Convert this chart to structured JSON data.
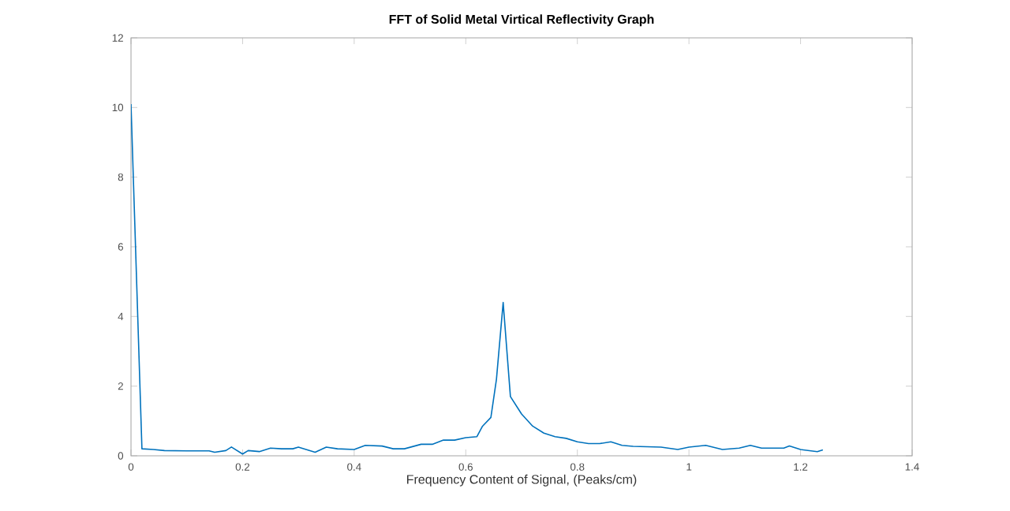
{
  "chart_data": {
    "type": "line",
    "title": "FFT of Solid Metal Virtical Reflectivity Graph",
    "xlabel": "Frequency Content of Signal, (Peaks/cm)",
    "xlim": [
      0,
      1.4
    ],
    "xticks": [
      0,
      0.2,
      0.4,
      0.6,
      0.8,
      1,
      1.2,
      1.4
    ],
    "ylim": [
      0,
      12
    ],
    "yticks": [
      0,
      2,
      4,
      6,
      8,
      10,
      12
    ],
    "grid": false,
    "marker": "none",
    "line_style": "solid",
    "series": [
      {
        "color": "#0072bd",
        "x": [
          0,
          0.0196,
          0.04,
          0.06,
          0.1,
          0.14,
          0.15,
          0.17,
          0.18,
          0.2,
          0.21,
          0.23,
          0.25,
          0.27,
          0.29,
          0.3,
          0.33,
          0.35,
          0.37,
          0.4,
          0.42,
          0.45,
          0.47,
          0.49,
          0.52,
          0.54,
          0.56,
          0.58,
          0.6,
          0.62,
          0.63,
          0.645,
          0.655,
          0.667,
          0.68,
          0.7,
          0.72,
          0.74,
          0.76,
          0.78,
          0.8,
          0.82,
          0.84,
          0.86,
          0.88,
          0.9,
          0.95,
          0.98,
          1.0,
          1.03,
          1.06,
          1.09,
          1.11,
          1.13,
          1.17,
          1.18,
          1.2,
          1.23,
          1.24
        ],
        "values": [
          10.1,
          0.2,
          0.18,
          0.15,
          0.14,
          0.14,
          0.1,
          0.15,
          0.25,
          0.05,
          0.15,
          0.12,
          0.22,
          0.2,
          0.2,
          0.25,
          0.1,
          0.25,
          0.2,
          0.18,
          0.3,
          0.28,
          0.2,
          0.2,
          0.33,
          0.33,
          0.45,
          0.45,
          0.52,
          0.55,
          0.85,
          1.1,
          2.2,
          4.4,
          1.7,
          1.2,
          0.85,
          0.65,
          0.55,
          0.5,
          0.4,
          0.35,
          0.35,
          0.4,
          0.3,
          0.27,
          0.25,
          0.18,
          0.25,
          0.3,
          0.18,
          0.22,
          0.3,
          0.22,
          0.22,
          0.28,
          0.18,
          0.12,
          0.17
        ]
      }
    ]
  }
}
